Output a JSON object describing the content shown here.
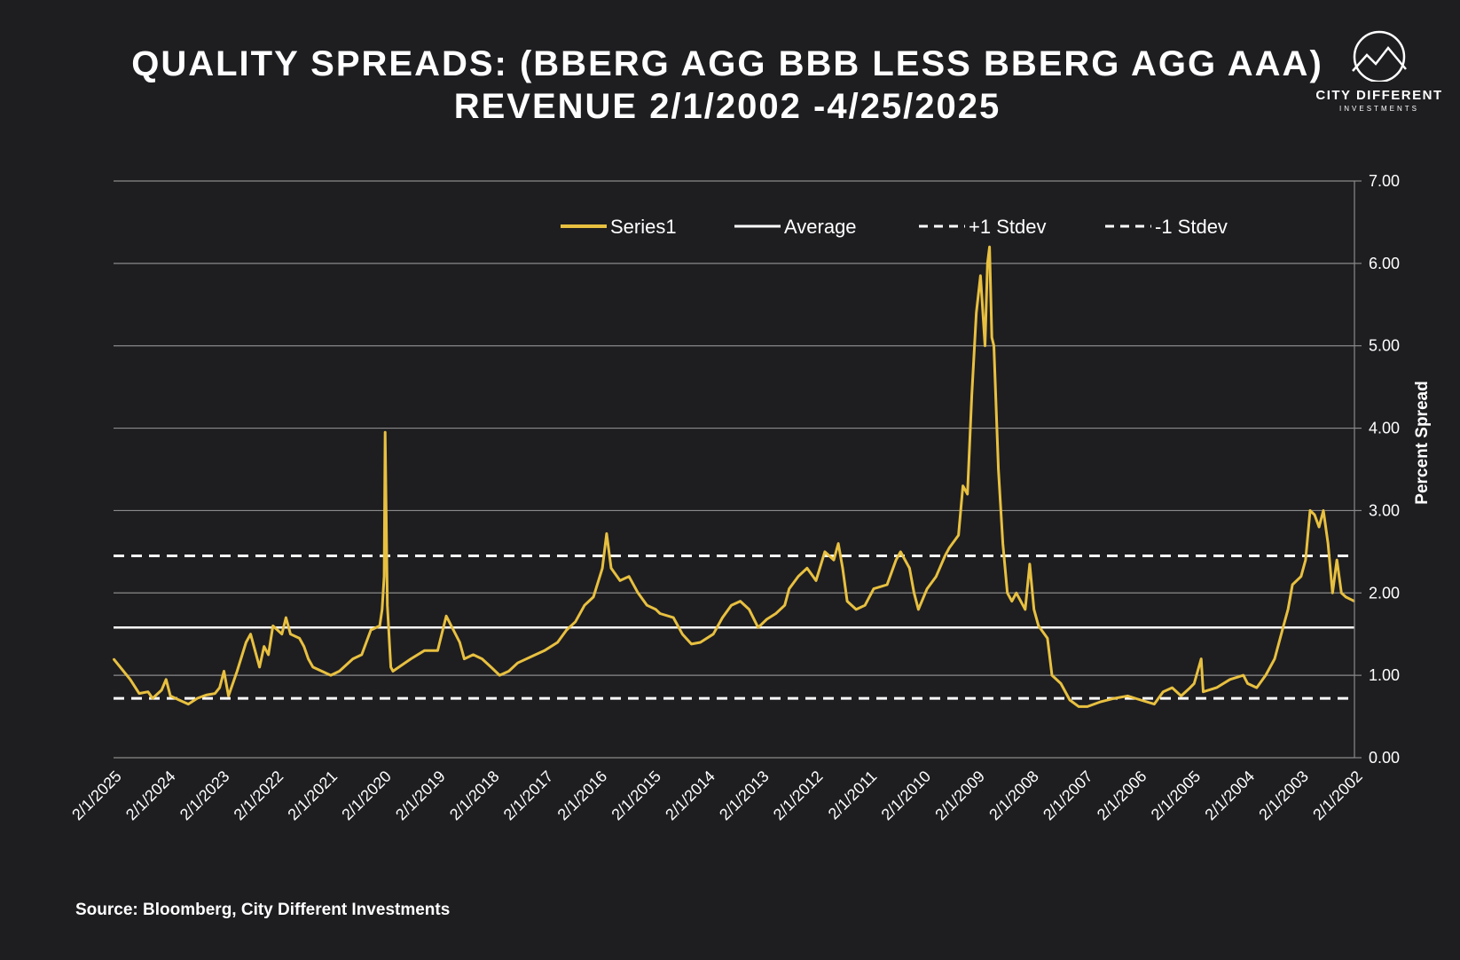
{
  "header": {
    "title_line1": "QUALITY SPREADS: (BBERG AGG BBB LESS BBERG AGG AAA)",
    "title_line2": "REVENUE 2/1/2002 -4/25/2025"
  },
  "logo": {
    "name": "CITY DIFFERENT",
    "sub": "INVESTMENTS"
  },
  "footer": {
    "source": "Source: Bloomberg, City Different Investments"
  },
  "colors": {
    "series": "#e8c040",
    "background": "#1e1e21",
    "grid": "#8a8a8a",
    "lines": "#ffffff"
  },
  "chart_data": {
    "type": "line",
    "title": "QUALITY SPREADS: (BBERG AGG BBB LESS BBERG AGG AAA) REVENUE 2/1/2002 -4/25/2025",
    "ylabel": "Percent Spread",
    "y_axis_side": "right",
    "x_axis_reversed": true,
    "ylim": [
      0,
      7
    ],
    "yticks": [
      "0.00",
      "1.00",
      "2.00",
      "3.00",
      "4.00",
      "5.00",
      "6.00",
      "7.00"
    ],
    "x_ticks": [
      "2/1/2025",
      "2/1/2024",
      "2/1/2023",
      "2/1/2022",
      "2/1/2021",
      "2/1/2020",
      "2/1/2019",
      "2/1/2018",
      "2/1/2017",
      "2/1/2016",
      "2/1/2015",
      "2/1/2014",
      "2/1/2013",
      "2/1/2012",
      "2/1/2011",
      "2/1/2010",
      "2/1/2009",
      "2/1/2008",
      "2/1/2007",
      "2/1/2006",
      "2/1/2005",
      "2/1/2004",
      "2/1/2003",
      "2/1/2002"
    ],
    "legend": [
      "Series1",
      "Average",
      "+1 Stdev",
      "-1 Stdev"
    ],
    "legend_position": "top-center",
    "grid": true,
    "reference_lines": {
      "average": 1.58,
      "plus_1_stdev": 2.45,
      "minus_1_stdev": 0.72
    },
    "series": [
      {
        "name": "Series1",
        "points": [
          [
            "2025-04-25",
            1.2
          ],
          [
            "2025-01-01",
            0.95
          ],
          [
            "2024-11-01",
            0.78
          ],
          [
            "2024-09-01",
            0.8
          ],
          [
            "2024-08-01",
            0.72
          ],
          [
            "2024-06-01",
            0.82
          ],
          [
            "2024-05-01",
            0.95
          ],
          [
            "2024-04-01",
            0.75
          ],
          [
            "2024-02-01",
            0.7
          ],
          [
            "2023-12-01",
            0.65
          ],
          [
            "2023-10-01",
            0.72
          ],
          [
            "2023-08-01",
            0.76
          ],
          [
            "2023-06-01",
            0.78
          ],
          [
            "2023-05-01",
            0.85
          ],
          [
            "2023-04-01",
            1.05
          ],
          [
            "2023-03-01",
            0.75
          ],
          [
            "2023-01-01",
            1.05
          ],
          [
            "2022-11-01",
            1.4
          ],
          [
            "2022-10-01",
            1.5
          ],
          [
            "2022-08-01",
            1.1
          ],
          [
            "2022-07-01",
            1.35
          ],
          [
            "2022-06-01",
            1.25
          ],
          [
            "2022-05-01",
            1.6
          ],
          [
            "2022-03-01",
            1.5
          ],
          [
            "2022-02-01",
            1.7
          ],
          [
            "2022-01-01",
            1.5
          ],
          [
            "2021-11-01",
            1.45
          ],
          [
            "2021-10-01",
            1.35
          ],
          [
            "2021-09-01",
            1.2
          ],
          [
            "2021-08-01",
            1.1
          ],
          [
            "2021-06-01",
            1.05
          ],
          [
            "2021-04-01",
            1.0
          ],
          [
            "2021-02-01",
            1.05
          ],
          [
            "2020-11-01",
            1.2
          ],
          [
            "2020-09-01",
            1.25
          ],
          [
            "2020-07-01",
            1.55
          ],
          [
            "2020-05-01",
            1.6
          ],
          [
            "2020-04-15",
            1.8
          ],
          [
            "2020-04-01",
            2.2
          ],
          [
            "2020-03-25",
            3.95
          ],
          [
            "2020-03-10",
            1.85
          ],
          [
            "2020-02-15",
            1.1
          ],
          [
            "2020-02-01",
            1.05
          ],
          [
            "2019-10-01",
            1.2
          ],
          [
            "2019-07-01",
            1.3
          ],
          [
            "2019-04-01",
            1.3
          ],
          [
            "2019-02-01",
            1.72
          ],
          [
            "2018-11-01",
            1.4
          ],
          [
            "2018-10-01",
            1.2
          ],
          [
            "2018-08-01",
            1.25
          ],
          [
            "2018-06-01",
            1.2
          ],
          [
            "2018-04-01",
            1.1
          ],
          [
            "2018-02-01",
            1.0
          ],
          [
            "2017-12-01",
            1.05
          ],
          [
            "2017-10-01",
            1.15
          ],
          [
            "2017-06-01",
            1.25
          ],
          [
            "2017-04-01",
            1.3
          ],
          [
            "2017-01-01",
            1.4
          ],
          [
            "2016-11-01",
            1.55
          ],
          [
            "2016-09-01",
            1.65
          ],
          [
            "2016-07-01",
            1.85
          ],
          [
            "2016-05-01",
            1.95
          ],
          [
            "2016-03-01",
            2.3
          ],
          [
            "2016-02-01",
            2.72
          ],
          [
            "2016-01-01",
            2.3
          ],
          [
            "2015-11-01",
            2.15
          ],
          [
            "2015-09-01",
            2.2
          ],
          [
            "2015-07-01",
            2.0
          ],
          [
            "2015-05-01",
            1.85
          ],
          [
            "2015-03-01",
            1.8
          ],
          [
            "2015-02-01",
            1.75
          ],
          [
            "2014-11-01",
            1.7
          ],
          [
            "2014-09-01",
            1.5
          ],
          [
            "2014-07-01",
            1.38
          ],
          [
            "2014-05-01",
            1.4
          ],
          [
            "2014-02-01",
            1.5
          ],
          [
            "2013-12-01",
            1.7
          ],
          [
            "2013-10-01",
            1.85
          ],
          [
            "2013-08-01",
            1.9
          ],
          [
            "2013-06-01",
            1.8
          ],
          [
            "2013-04-01",
            1.58
          ],
          [
            "2013-02-01",
            1.68
          ],
          [
            "2012-12-01",
            1.75
          ],
          [
            "2012-10-01",
            1.85
          ],
          [
            "2012-09-01",
            2.05
          ],
          [
            "2012-07-01",
            2.2
          ],
          [
            "2012-05-01",
            2.3
          ],
          [
            "2012-03-01",
            2.15
          ],
          [
            "2012-01-01",
            2.5
          ],
          [
            "2011-11-01",
            2.4
          ],
          [
            "2011-10-01",
            2.6
          ],
          [
            "2011-09-01",
            2.3
          ],
          [
            "2011-08-01",
            1.9
          ],
          [
            "2011-06-01",
            1.8
          ],
          [
            "2011-04-01",
            1.85
          ],
          [
            "2011-02-01",
            2.05
          ],
          [
            "2010-11-01",
            2.1
          ],
          [
            "2010-09-01",
            2.4
          ],
          [
            "2010-08-01",
            2.5
          ],
          [
            "2010-06-01",
            2.3
          ],
          [
            "2010-05-01",
            2.0
          ],
          [
            "2010-04-01",
            1.8
          ],
          [
            "2010-02-01",
            2.05
          ],
          [
            "2009-12-01",
            2.2
          ],
          [
            "2009-10-01",
            2.45
          ],
          [
            "2009-09-01",
            2.55
          ],
          [
            "2009-07-01",
            2.7
          ],
          [
            "2009-06-01",
            3.3
          ],
          [
            "2009-05-01",
            3.2
          ],
          [
            "2009-04-01",
            4.4
          ],
          [
            "2009-03-01",
            5.4
          ],
          [
            "2009-02-01",
            5.85
          ],
          [
            "2009-01-01",
            5.0
          ],
          [
            "2008-12-15",
            6.0
          ],
          [
            "2008-12-01",
            6.2
          ],
          [
            "2008-11-15",
            5.1
          ],
          [
            "2008-11-01",
            5.0
          ],
          [
            "2008-10-01",
            3.5
          ],
          [
            "2008-09-01",
            2.6
          ],
          [
            "2008-08-01",
            2.0
          ],
          [
            "2008-07-01",
            1.9
          ],
          [
            "2008-06-01",
            2.0
          ],
          [
            "2008-04-01",
            1.8
          ],
          [
            "2008-03-01",
            2.35
          ],
          [
            "2008-02-01",
            1.8
          ],
          [
            "2008-01-01",
            1.6
          ],
          [
            "2007-11-01",
            1.45
          ],
          [
            "2007-10-01",
            1.0
          ],
          [
            "2007-08-01",
            0.9
          ],
          [
            "2007-06-01",
            0.7
          ],
          [
            "2007-04-01",
            0.62
          ],
          [
            "2007-02-01",
            0.62
          ],
          [
            "2006-11-01",
            0.68
          ],
          [
            "2006-08-01",
            0.72
          ],
          [
            "2006-05-01",
            0.75
          ],
          [
            "2006-02-01",
            0.7
          ],
          [
            "2005-11-01",
            0.65
          ],
          [
            "2005-09-01",
            0.8
          ],
          [
            "2005-07-01",
            0.85
          ],
          [
            "2005-05-01",
            0.75
          ],
          [
            "2005-03-01",
            0.85
          ],
          [
            "2005-02-01",
            0.9
          ],
          [
            "2004-12-15",
            1.2
          ],
          [
            "2004-12-01",
            0.8
          ],
          [
            "2004-09-01",
            0.85
          ],
          [
            "2004-06-01",
            0.95
          ],
          [
            "2004-03-01",
            1.0
          ],
          [
            "2004-02-01",
            0.9
          ],
          [
            "2003-12-01",
            0.85
          ],
          [
            "2003-10-01",
            1.0
          ],
          [
            "2003-08-01",
            1.2
          ],
          [
            "2003-06-01",
            1.6
          ],
          [
            "2003-05-01",
            1.8
          ],
          [
            "2003-04-01",
            2.1
          ],
          [
            "2003-02-01",
            2.2
          ],
          [
            "2003-01-01",
            2.4
          ],
          [
            "2002-12-01",
            3.0
          ],
          [
            "2002-11-01",
            2.95
          ],
          [
            "2002-10-01",
            2.8
          ],
          [
            "2002-09-01",
            3.0
          ],
          [
            "2002-08-01",
            2.6
          ],
          [
            "2002-07-01",
            2.0
          ],
          [
            "2002-06-01",
            2.4
          ],
          [
            "2002-05-01",
            2.0
          ],
          [
            "2002-04-01",
            1.95
          ],
          [
            "2002-02-01",
            1.9
          ]
        ]
      }
    ]
  }
}
